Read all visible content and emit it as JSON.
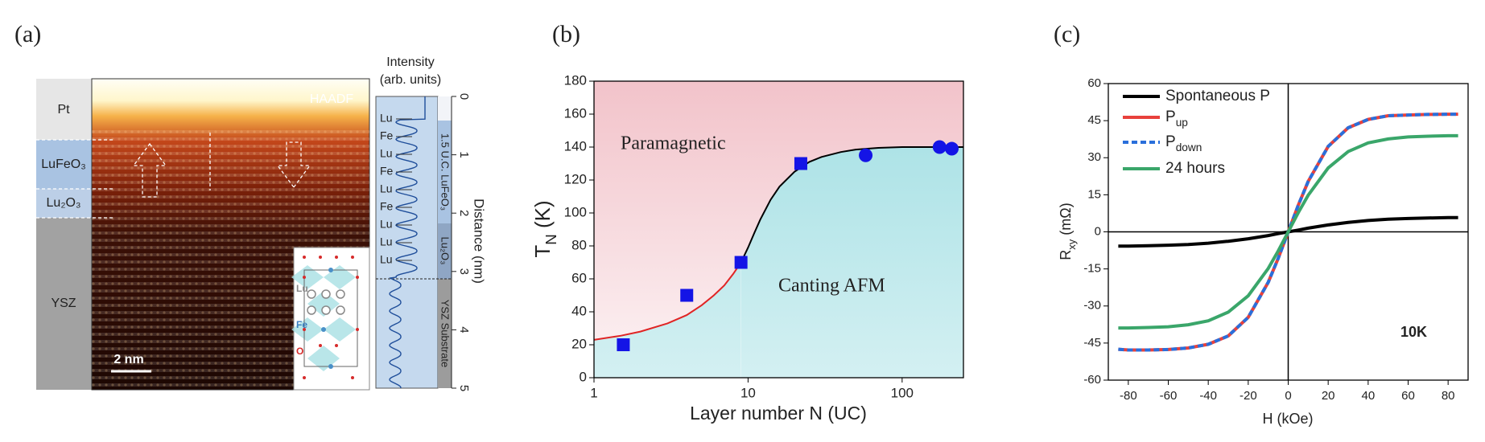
{
  "panel_a": {
    "label": "(a)",
    "layers": [
      "Pt",
      "LuFeO₃",
      "Lu₂O₃",
      "YSZ"
    ],
    "image_label": "HAADF",
    "scale_bar": "2 nm",
    "intensity_label": [
      "Intensity",
      "(arb. units)"
    ],
    "atom_rows": [
      "Lu",
      "Fe",
      "Lu",
      "Fe",
      "Lu",
      "Fe",
      "Lu",
      "Lu",
      "Lu"
    ],
    "regions": [
      "1.5 U.C. LuFeO₃",
      "Lu₂O₃",
      "YSZ Substrate"
    ],
    "distance_label": "Distance (nm)",
    "distance_ticks": [
      0,
      1,
      2,
      3,
      4,
      5
    ],
    "inset_labels": [
      "Lu",
      "Fe",
      "O"
    ]
  },
  "chart_data": [
    {
      "type": "scatter",
      "label": "(b)",
      "xscale": "log",
      "xlabel": "Layer number N (UC)",
      "ylabel": [
        "T",
        "N",
        " (K)"
      ],
      "xlim": [
        1,
        250
      ],
      "ylim": [
        0,
        180
      ],
      "xticks": [
        1,
        10,
        100
      ],
      "yticks": [
        0,
        20,
        40,
        60,
        80,
        100,
        120,
        140,
        160,
        180
      ],
      "region_colors": [
        "#f2c3ca",
        "#a8e1e5"
      ],
      "annotations": [
        "Paramagnetic",
        "Canting AFM"
      ],
      "series": [
        {
          "style": "line",
          "color": "#e02424",
          "x": [
            1,
            1.5,
            2,
            3,
            4,
            5,
            6,
            7,
            8,
            9
          ],
          "values": [
            23,
            25.5,
            28,
            33,
            38,
            44,
            50,
            56,
            63,
            70
          ]
        },
        {
          "style": "line",
          "color": "#000000",
          "x": [
            9,
            10,
            11,
            12,
            14,
            16,
            20,
            25,
            30,
            40,
            50,
            70,
            100,
            150,
            250
          ],
          "values": [
            70,
            79,
            88,
            96,
            108,
            116,
            125,
            131,
            134,
            137,
            138.5,
            139.5,
            140,
            140,
            140
          ]
        },
        {
          "style": "marker",
          "marker": "square",
          "color": "#1414e6",
          "x": [
            1.55,
            4,
            9,
            22
          ],
          "values": [
            20,
            50,
            70,
            130
          ]
        },
        {
          "style": "marker",
          "marker": "circle",
          "color": "#1414e6",
          "x": [
            58,
            175,
            210
          ],
          "values": [
            135,
            140,
            139
          ]
        }
      ]
    },
    {
      "type": "line",
      "label": "(c)",
      "xlabel": "H (kOe)",
      "ylabel": [
        "R",
        "xy",
        " (mΩ)"
      ],
      "xlim": [
        -90,
        90
      ],
      "ylim": [
        -60,
        60
      ],
      "xticks": [
        -80,
        -60,
        -40,
        -20,
        0,
        20,
        40,
        60,
        80
      ],
      "yticks": [
        -60,
        -45,
        -30,
        -15,
        0,
        15,
        30,
        45,
        60
      ],
      "zero_lines": true,
      "legend": "upper left",
      "annotations": [
        "10K"
      ],
      "x": [
        -85,
        -80,
        -70,
        -60,
        -50,
        -40,
        -30,
        -20,
        -10,
        -5,
        0,
        5,
        10,
        20,
        30,
        40,
        50,
        60,
        70,
        80,
        85
      ],
      "series": [
        {
          "name": [
            "Spontaneous P"
          ],
          "color": "#000000",
          "dash": false,
          "values": [
            -5.8,
            -5.8,
            -5.6,
            -5.4,
            -5.1,
            -4.6,
            -3.8,
            -2.8,
            -1.5,
            -0.7,
            0,
            0.7,
            1.5,
            2.8,
            3.8,
            4.6,
            5.1,
            5.4,
            5.6,
            5.8,
            5.8
          ]
        },
        {
          "name": [
            "P",
            "up"
          ],
          "color": "#e8413c",
          "dash": false,
          "values": [
            -47.5,
            -47.8,
            -47.8,
            -47.6,
            -47,
            -45.5,
            -42.1,
            -34.6,
            -20.4,
            -10.7,
            0,
            10.7,
            20.4,
            34.6,
            42.1,
            45.5,
            47,
            47.3,
            47.5,
            47.6,
            47.6
          ]
        },
        {
          "name": [
            "P",
            "down"
          ],
          "color": "#2a6fdb",
          "dash": true,
          "values": [
            -47.5,
            -47.8,
            -47.8,
            -47.6,
            -47,
            -45.5,
            -42.1,
            -34.6,
            -20.4,
            -10.7,
            0,
            10.7,
            20.4,
            34.6,
            42.1,
            45.5,
            47,
            47.3,
            47.5,
            47.6,
            47.6
          ]
        },
        {
          "name": [
            "24 hours"
          ],
          "color": "#3aa66a",
          "dash": false,
          "values": [
            -38.9,
            -38.9,
            -38.7,
            -38.4,
            -37.6,
            -36,
            -32.5,
            -25.9,
            -14.8,
            -7.7,
            0,
            7.7,
            14.8,
            25.9,
            32.5,
            36,
            37.6,
            38.4,
            38.7,
            38.9,
            38.9
          ]
        }
      ]
    }
  ]
}
